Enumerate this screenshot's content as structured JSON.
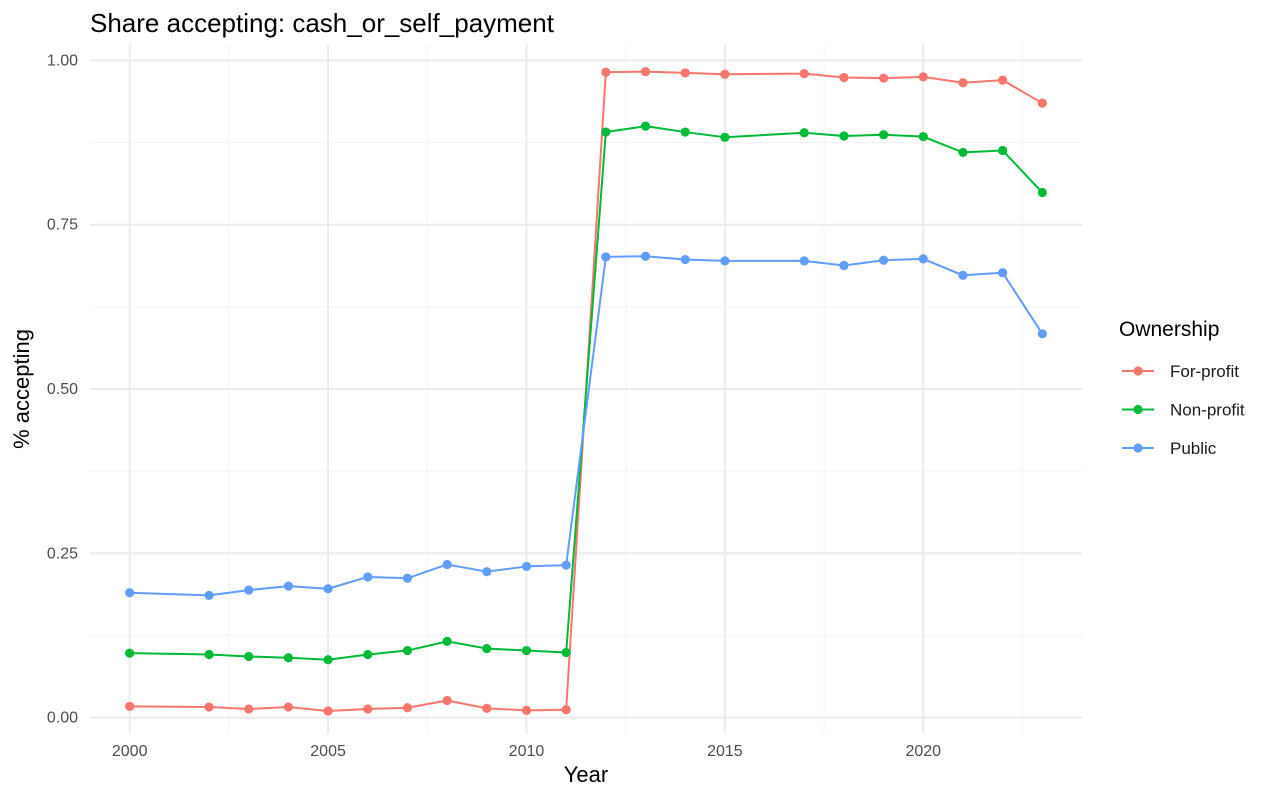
{
  "chart_data": {
    "type": "line",
    "title": "Share accepting: cash_or_self_payment",
    "xlabel": "Year",
    "ylabel": "% accepting",
    "xlim": [
      1999.0,
      2024.0
    ],
    "ylim": [
      -0.025,
      1.025
    ],
    "x_ticks": [
      2000,
      2005,
      2010,
      2015,
      2020
    ],
    "x_tick_labels": [
      "2000",
      "2005",
      "2010",
      "2015",
      "2020"
    ],
    "y_ticks": [
      0.0,
      0.25,
      0.5,
      0.75,
      1.0
    ],
    "y_tick_labels": [
      "0.00",
      "0.25",
      "0.50",
      "0.75",
      "1.00"
    ],
    "grid": true,
    "legend": {
      "title": "Ownership",
      "placement": "right"
    },
    "x": [
      2000,
      2002,
      2003,
      2004,
      2005,
      2006,
      2007,
      2008,
      2009,
      2010,
      2011,
      2012,
      2013,
      2014,
      2015,
      2017,
      2018,
      2019,
      2020,
      2021,
      2022,
      2023
    ],
    "series": [
      {
        "name": "For-profit",
        "color": "#F8766D",
        "values": [
          0.017,
          0.016,
          0.013,
          0.016,
          0.01,
          0.013,
          0.015,
          0.026,
          0.014,
          0.011,
          0.012,
          0.982,
          0.983,
          0.981,
          0.979,
          0.98,
          0.974,
          0.973,
          0.975,
          0.966,
          0.97,
          0.935
        ]
      },
      {
        "name": "Non-profit",
        "color": "#00BA38",
        "values": [
          0.098,
          0.096,
          0.093,
          0.091,
          0.088,
          0.096,
          0.102,
          0.116,
          0.105,
          0.102,
          0.099,
          0.891,
          0.9,
          0.891,
          0.883,
          0.89,
          0.885,
          0.887,
          0.884,
          0.86,
          0.863,
          0.799
        ]
      },
      {
        "name": "Public",
        "color": "#619CFF",
        "values": [
          0.19,
          0.186,
          0.194,
          0.2,
          0.196,
          0.214,
          0.212,
          0.233,
          0.222,
          0.23,
          0.232,
          0.701,
          0.702,
          0.697,
          0.695,
          0.695,
          0.688,
          0.696,
          0.698,
          0.673,
          0.677,
          0.584
        ]
      }
    ]
  }
}
